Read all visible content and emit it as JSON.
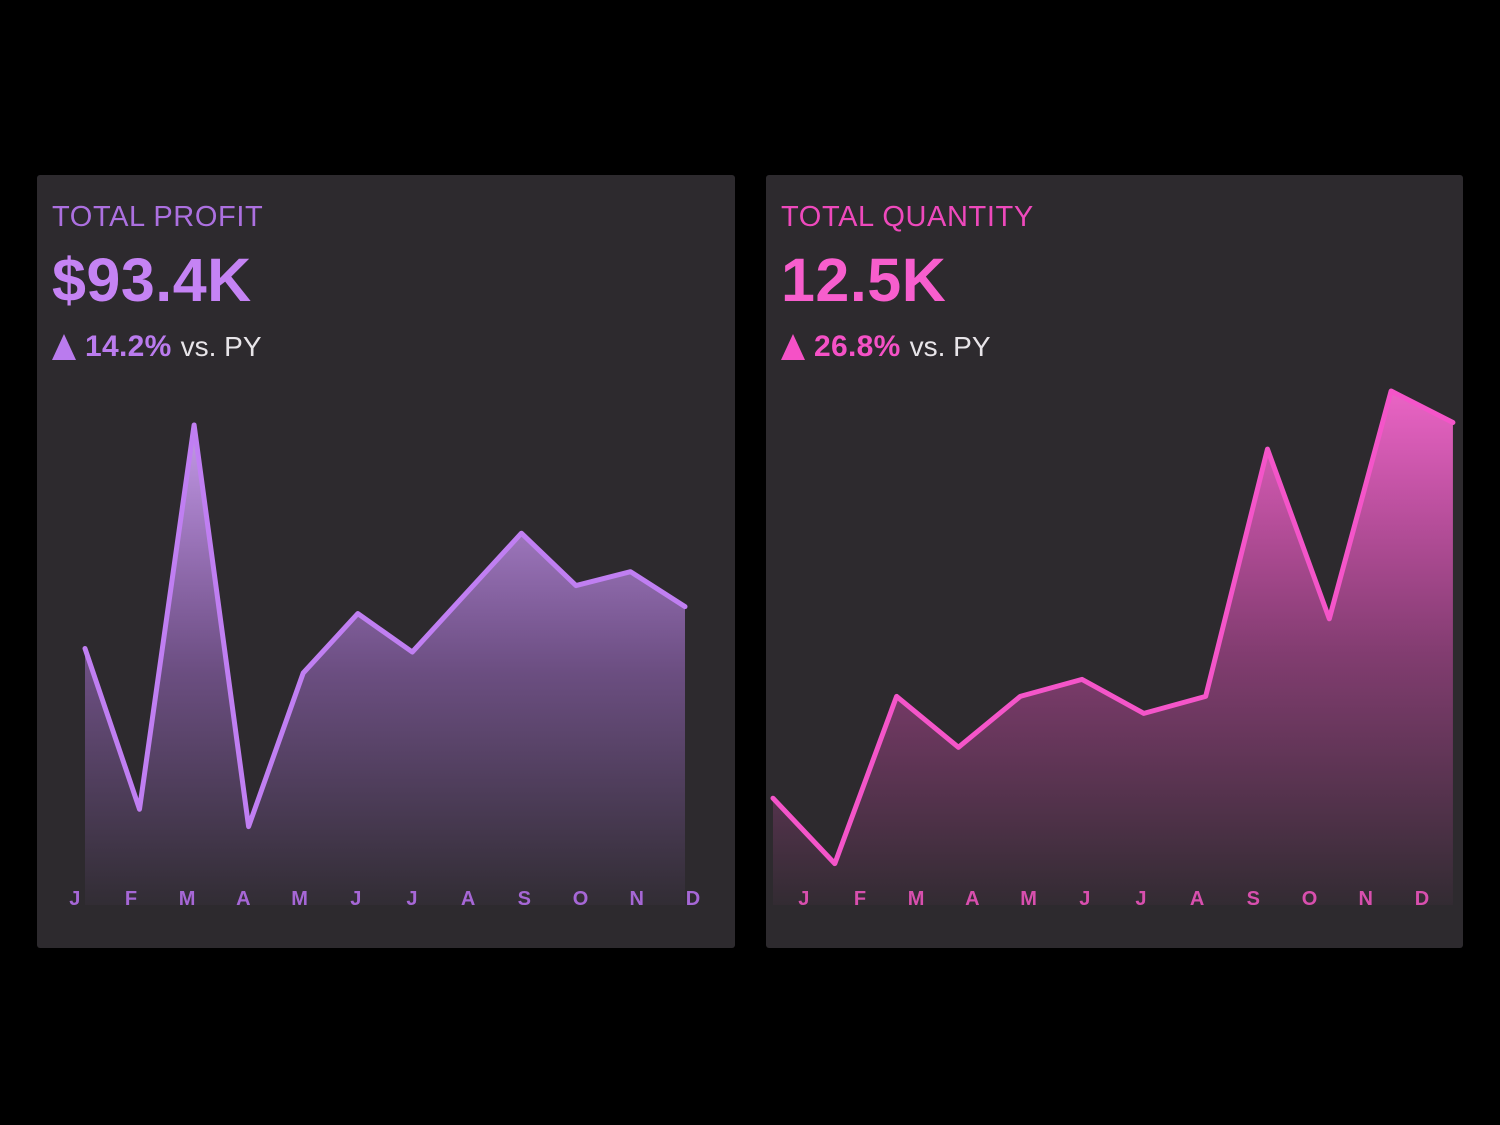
{
  "page": {
    "background": "#000000",
    "card_background": "#2d2a2e"
  },
  "cards": [
    {
      "title": "TOTAL PROFIT",
      "value": "$93.4K",
      "delta": {
        "direction": "up",
        "pct": "14.2%",
        "suffix": "vs. PY"
      },
      "colors": {
        "title": "#ac70e0",
        "value": "#c583f4",
        "delta": "#ba7bee",
        "suffix": "#e8e5e9",
        "line": "#c07ff2",
        "fill_top": "#cda2f2",
        "labels": "#a667d6"
      }
    },
    {
      "title": "TOTAL QUANTITY",
      "value": "12.5K",
      "delta": {
        "direction": "up",
        "pct": "26.8%",
        "suffix": "vs. PY"
      },
      "colors": {
        "title": "#ee49bc",
        "value": "#f75ecd",
        "delta": "#f551c6",
        "suffix": "#e8e5e9",
        "line": "#f455c9",
        "fill_top": "#f467cd",
        "labels": "#d84fae"
      }
    }
  ],
  "chart_data": [
    {
      "type": "area",
      "title": "Total Profit by month",
      "categories": [
        "J",
        "F",
        "M",
        "A",
        "M",
        "J",
        "J",
        "A",
        "S",
        "O",
        "N",
        "D"
      ],
      "values": [
        7.2,
        2.6,
        13.6,
        2.1,
        6.5,
        8.2,
        7.1,
        8.8,
        10.5,
        9.0,
        9.4,
        8.4
      ],
      "unit": "USD thousands (estimated from sparkline; annual total $93.4K)",
      "xlabel": "",
      "ylabel": "",
      "ylim": [
        0,
        14
      ],
      "grid": false,
      "legend": "none",
      "axes_hidden": true,
      "area_gradient": true
    },
    {
      "type": "area",
      "title": "Total Quantity by month",
      "categories": [
        "J",
        "F",
        "M",
        "A",
        "M",
        "J",
        "J",
        "A",
        "S",
        "O",
        "N",
        "D"
      ],
      "values": [
        0.42,
        0.15,
        0.84,
        0.63,
        0.84,
        0.91,
        0.77,
        0.84,
        1.86,
        1.16,
        2.1,
        1.97
      ],
      "unit": "thousands of units (estimated from sparkline; annual total 12.5K)",
      "xlabel": "",
      "ylabel": "",
      "ylim": [
        0,
        2.2
      ],
      "grid": false,
      "legend": "none",
      "axes_hidden": true,
      "area_gradient": true
    }
  ]
}
